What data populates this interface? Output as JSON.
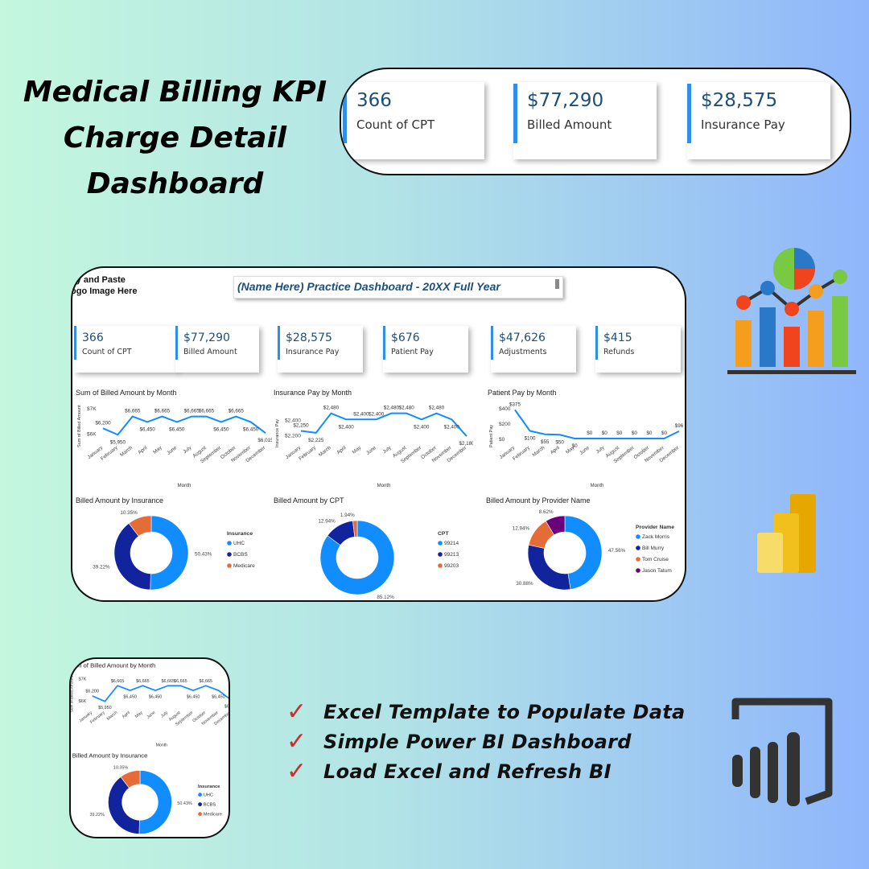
{
  "hero": {
    "title_lines": [
      "Medical Billing KPI",
      "Charge Detail",
      "Dashboard"
    ]
  },
  "top_kpis": [
    {
      "value": "366",
      "label": "Count of CPT"
    },
    {
      "value": "$77,290",
      "label": "Billed Amount"
    },
    {
      "value": "$28,575",
      "label": "Insurance Pay"
    }
  ],
  "dashboard": {
    "logo_text": "py and Paste\nogo Image Here",
    "title": "(Name Here) Practice Dashboard - 20XX Full Year",
    "kpis": [
      {
        "value": "366",
        "label": "Count of CPT"
      },
      {
        "value": "$77,290",
        "label": "Billed Amount"
      },
      {
        "value": "$28,575",
        "label": "Insurance Pay"
      },
      {
        "value": "$676",
        "label": "Patient Pay"
      },
      {
        "value": "$47,626",
        "label": "Adjustments"
      },
      {
        "value": "$415",
        "label": "Refunds"
      }
    ]
  },
  "chart_data": [
    {
      "type": "line",
      "title": "Sum of Billed Amount by Month",
      "xlabel": "Month",
      "ylabel": "Sum of Billed Amount",
      "yticks": [
        "$7K",
        "$6K"
      ],
      "ylim": [
        5800,
        7000
      ],
      "categories": [
        "January",
        "February",
        "March",
        "April",
        "May",
        "June",
        "July",
        "August",
        "September",
        "October",
        "November",
        "December"
      ],
      "values": [
        6200,
        5950,
        6665,
        6450,
        6665,
        6450,
        6665,
        6665,
        6450,
        6665,
        6450,
        6015
      ],
      "data_labels": [
        "$6,200",
        "$5,950",
        "$6,665",
        "$6,450",
        "$6,665",
        "$6,450",
        "$6,665",
        "$6,665",
        "$6,450",
        "$6,665",
        "$6,450",
        "$6,015"
      ]
    },
    {
      "type": "line",
      "title": "Insurance Pay by Month",
      "xlabel": "Month",
      "ylabel": "Insurance Pay",
      "yticks": [
        "$2,400",
        "$2,200"
      ],
      "ylim": [
        2150,
        2550
      ],
      "categories": [
        "January",
        "February",
        "March",
        "April",
        "May",
        "June",
        "July",
        "August",
        "September",
        "October",
        "November",
        "December"
      ],
      "values": [
        2250,
        2225,
        2480,
        2400,
        2400,
        2400,
        2480,
        2480,
        2400,
        2480,
        2400,
        2180
      ],
      "data_labels": [
        "$2,250",
        "$2,225",
        "$2,480",
        "$2,400",
        "$2,400",
        "$2,400",
        "$2,480",
        "$2,480",
        "$2,400",
        "$2,480",
        "$2,400",
        "$2,180"
      ]
    },
    {
      "type": "line",
      "title": "Patient Pay by Month",
      "xlabel": "Month",
      "ylabel": "Patient Pay",
      "yticks": [
        "$400",
        "$200",
        "$0"
      ],
      "ylim": [
        0,
        400
      ],
      "categories": [
        "January",
        "February",
        "March",
        "April",
        "May",
        "June",
        "July",
        "August",
        "September",
        "October",
        "November",
        "December"
      ],
      "values": [
        375,
        100,
        55,
        50,
        0,
        0,
        0,
        0,
        0,
        0,
        0,
        96
      ],
      "data_labels": [
        "$375",
        "$100",
        "$55",
        "$50",
        "$0",
        "$0",
        "$0",
        "$0",
        "$0",
        "$0",
        "$0",
        "$96"
      ]
    },
    {
      "type": "pie",
      "title": "Billed Amount by Insurance",
      "legend_title": "Insurance",
      "labels": [
        "UHC",
        "BCBS",
        "Medicare"
      ],
      "values": [
        50.43,
        39.22,
        10.35
      ],
      "pct_labels": [
        "50.43%",
        "39.22%",
        "10.35%"
      ],
      "colors": [
        "#118dff",
        "#12239e",
        "#e66c37"
      ]
    },
    {
      "type": "pie",
      "title": "Billed Amount by CPT",
      "legend_title": "CPT",
      "labels": [
        "99214",
        "99213",
        "99203"
      ],
      "values": [
        85.12,
        12.94,
        1.94
      ],
      "pct_labels": [
        "85.12%",
        "12.94%",
        "1.94%"
      ],
      "colors": [
        "#118dff",
        "#12239e",
        "#e66c37"
      ]
    },
    {
      "type": "pie",
      "title": "Billed Amount by Provider Name",
      "legend_title": "Provider Name",
      "labels": [
        "Zack Morris",
        "Bill Murry",
        "Tom Cruise",
        "Jason Tatum"
      ],
      "values": [
        47.56,
        30.88,
        12.94,
        8.62
      ],
      "pct_labels": [
        "47.56%",
        "30.88%",
        "12.94%",
        "8.62%"
      ],
      "colors": [
        "#118dff",
        "#12239e",
        "#e66c37",
        "#6b007b"
      ]
    }
  ],
  "bullets": [
    "Excel Template to Populate Data",
    "Simple Power BI Dashboard",
    "Load Excel and Refresh BI"
  ],
  "colors": {
    "accent_blue": "#2f8fe6",
    "kpi_value": "#1f4e79",
    "check_red": "#d32a2a"
  }
}
